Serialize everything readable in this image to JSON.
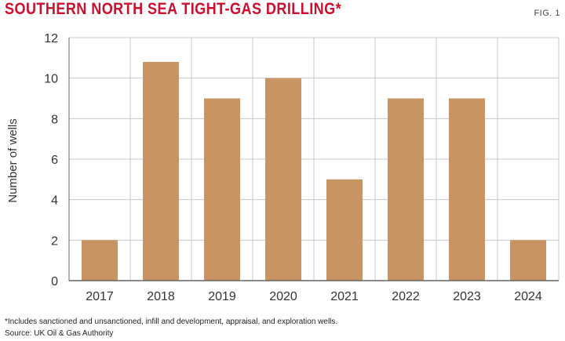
{
  "header": {
    "title": "SOUTHERN NORTH SEA TIGHT-GAS DRILLING*",
    "fig_label": "FIG. 1"
  },
  "footer": {
    "note": "*Includes sanctioned and unsanctioned, infill and development, appraisal, and exploration wells.",
    "source": "Source: UK Oil & Gas Authority"
  },
  "colors": {
    "title": "#c8102e",
    "bar": "#c89464",
    "grid": "#c8c8c8",
    "axis": "#666666"
  },
  "chart_data": {
    "type": "bar",
    "categories": [
      "2017",
      "2018",
      "2019",
      "2020",
      "2021",
      "2022",
      "2023",
      "2024"
    ],
    "values": [
      2,
      10.8,
      9,
      10,
      5,
      9,
      9,
      2
    ],
    "title": "SOUTHERN NORTH SEA TIGHT-GAS DRILLING*",
    "xlabel": "",
    "ylabel": "Number of wells",
    "ylim": [
      0,
      12
    ],
    "yticks": [
      0,
      2,
      4,
      6,
      8,
      10,
      12
    ],
    "grid": true,
    "legend": "none"
  }
}
